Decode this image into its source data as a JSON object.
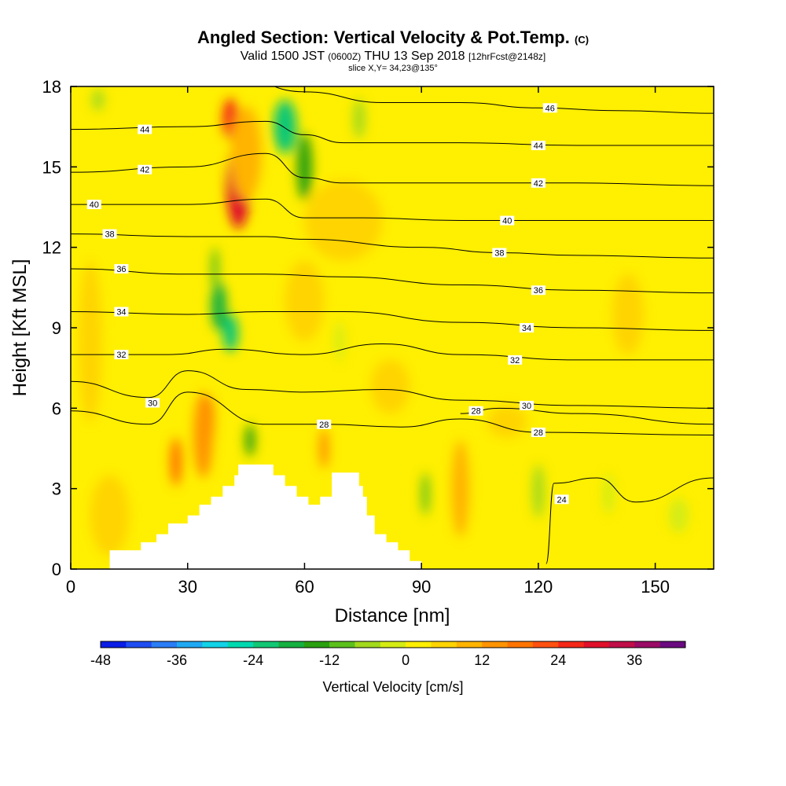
{
  "header": {
    "title": "Angled Section: Vertical Velocity & Pot.Temp.",
    "title_unit": "(C)",
    "valid_prefix": "Valid 1500 JST",
    "valid_utc": "(0600Z)",
    "valid_date": "THU 13 Sep 2018",
    "forecast": "[12hrFcst@2148z]",
    "slice": "slice X,Y= 34,23@135°"
  },
  "chart_data": {
    "type": "heatmap",
    "xlabel": "Distance [nm]",
    "ylabel": "Height [Kft MSL]",
    "xlim": [
      0,
      165
    ],
    "ylim": [
      0,
      18
    ],
    "x_ticks": [
      0,
      30,
      60,
      90,
      120,
      150
    ],
    "y_ticks": [
      0,
      3,
      6,
      9,
      12,
      15,
      18
    ],
    "background_value": 2,
    "colorbar": {
      "title": "Vertical Velocity [cm/s]",
      "min": -48,
      "max": 42,
      "step": 4,
      "tick_values": [
        -48,
        -36,
        -24,
        -12,
        0,
        12,
        24,
        36
      ],
      "colors": [
        "#0a1ee6",
        "#1f4df2",
        "#2a7df5",
        "#1fa9f2",
        "#12d2e6",
        "#00d9b0",
        "#11c774",
        "#14b040",
        "#2aa010",
        "#5cc01c",
        "#a2d91c",
        "#d4ec14",
        "#ffef00",
        "#ffd400",
        "#ffb400",
        "#ff9400",
        "#ff7400",
        "#ff5010",
        "#f52818",
        "#e0102a",
        "#c00e48",
        "#9a0c66",
        "#6a0a80"
      ]
    },
    "terrain": [
      [
        10,
        0
      ],
      [
        10,
        0.7
      ],
      [
        18,
        0.7
      ],
      [
        18,
        1
      ],
      [
        22,
        1
      ],
      [
        22,
        1.3
      ],
      [
        25,
        1.3
      ],
      [
        25,
        1.7
      ],
      [
        30,
        1.7
      ],
      [
        30,
        2
      ],
      [
        33,
        2
      ],
      [
        33,
        2.4
      ],
      [
        36,
        2.4
      ],
      [
        36,
        2.7
      ],
      [
        39,
        2.7
      ],
      [
        39,
        3.1
      ],
      [
        42,
        3.1
      ],
      [
        42,
        3.5
      ],
      [
        43,
        3.5
      ],
      [
        43,
        3.9
      ],
      [
        52,
        3.9
      ],
      [
        52,
        3.5
      ],
      [
        55,
        3.5
      ],
      [
        55,
        3.1
      ],
      [
        58,
        3.1
      ],
      [
        58,
        2.7
      ],
      [
        61,
        2.7
      ],
      [
        61,
        2.4
      ],
      [
        64,
        2.4
      ],
      [
        64,
        2.7
      ],
      [
        67,
        2.7
      ],
      [
        67,
        3.6
      ],
      [
        74,
        3.6
      ],
      [
        74,
        3.1
      ],
      [
        75,
        3.1
      ],
      [
        75,
        2.7
      ],
      [
        76,
        2.7
      ],
      [
        76,
        2
      ],
      [
        78,
        2
      ],
      [
        78,
        1.3
      ],
      [
        81,
        1.3
      ],
      [
        81,
        1
      ],
      [
        84,
        1
      ],
      [
        84,
        0.7
      ],
      [
        87,
        0.7
      ],
      [
        87,
        0.3
      ],
      [
        90,
        0.3
      ],
      [
        90,
        0
      ]
    ],
    "velocity_cells": [
      {
        "x": 43,
        "y": 14.3,
        "w": 6,
        "h": 3.2,
        "value": 28
      },
      {
        "x": 41,
        "y": 16.8,
        "w": 4,
        "h": 1.5,
        "value": 24
      },
      {
        "x": 55,
        "y": 16.5,
        "w": 6,
        "h": 2,
        "value": -24
      },
      {
        "x": 60,
        "y": 15,
        "w": 4,
        "h": 2.5,
        "value": -16
      },
      {
        "x": 45,
        "y": 15.5,
        "w": 8,
        "h": 3.5,
        "value": 8
      },
      {
        "x": 74,
        "y": 16.8,
        "w": 3,
        "h": 1.5,
        "value": -8
      },
      {
        "x": 7,
        "y": 17.5,
        "w": 3,
        "h": 0.8,
        "value": -8
      },
      {
        "x": 38,
        "y": 9.8,
        "w": 4,
        "h": 1.8,
        "value": -20
      },
      {
        "x": 41,
        "y": 8.8,
        "w": 4,
        "h": 1.4,
        "value": -24
      },
      {
        "x": 37,
        "y": 11.2,
        "w": 2,
        "h": 1.6,
        "value": -12
      },
      {
        "x": 35.5,
        "y": 5.4,
        "w": 2.5,
        "h": 2,
        "value": 26
      },
      {
        "x": 34,
        "y": 5,
        "w": 5,
        "h": 3.2,
        "value": 12
      },
      {
        "x": 27,
        "y": 4,
        "w": 3,
        "h": 1.8,
        "value": 18
      },
      {
        "x": 46,
        "y": 4.8,
        "w": 2.5,
        "h": 1.2,
        "value": -16
      },
      {
        "x": 65,
        "y": 4.5,
        "w": 2.5,
        "h": 1.5,
        "value": 12
      },
      {
        "x": 69,
        "y": 8.5,
        "w": 2.5,
        "h": 1.5,
        "value": -4
      },
      {
        "x": 100,
        "y": 3.2,
        "w": 2.5,
        "h": 2.4,
        "value": 24
      },
      {
        "x": 100,
        "y": 3,
        "w": 4.5,
        "h": 3.6,
        "value": 10
      },
      {
        "x": 91,
        "y": 2.8,
        "w": 2,
        "h": 1.6,
        "value": -12
      },
      {
        "x": 120,
        "y": 2.9,
        "w": 3,
        "h": 2,
        "value": -8
      },
      {
        "x": 138,
        "y": 2.8,
        "w": 3,
        "h": 1.5,
        "value": -4
      },
      {
        "x": 156,
        "y": 2,
        "w": 5,
        "h": 1.3,
        "value": -4
      },
      {
        "x": 10,
        "y": 2,
        "w": 10,
        "h": 3,
        "value": 6
      },
      {
        "x": 143,
        "y": 9.5,
        "w": 8,
        "h": 3,
        "value": 5
      },
      {
        "x": 5,
        "y": 8.5,
        "w": 6,
        "h": 6,
        "value": 5
      },
      {
        "x": 70,
        "y": 13,
        "w": 20,
        "h": 3,
        "value": 4
      },
      {
        "x": 60,
        "y": 10,
        "w": 10,
        "h": 3,
        "value": 6
      },
      {
        "x": 82,
        "y": 6.8,
        "w": 10,
        "h": 2,
        "value": 6
      },
      {
        "x": 112,
        "y": 5.5,
        "w": 10,
        "h": 1.2,
        "value": 6
      }
    ],
    "theta_contours": [
      {
        "value": 46,
        "points": [
          [
            0,
            18.2
          ],
          [
            40,
            18.5
          ],
          [
            60,
            17.8
          ],
          [
            80,
            17.4
          ],
          [
            100,
            17.4
          ],
          [
            120,
            17.2
          ],
          [
            140,
            17.1
          ],
          [
            165,
            17
          ]
        ],
        "label_at": [
          123,
          17.2
        ]
      },
      {
        "value": 44,
        "points": [
          [
            0,
            16.4
          ],
          [
            30,
            16.5
          ],
          [
            50,
            16.7
          ],
          [
            60,
            16.2
          ],
          [
            70,
            15.9
          ],
          [
            100,
            15.9
          ],
          [
            130,
            15.8
          ],
          [
            165,
            15.8
          ]
        ],
        "label_at": [
          19,
          16.4
        ]
      },
      {
        "value": 44,
        "points": [
          [
            0,
            16.4
          ],
          [
            30,
            16.5
          ],
          [
            50,
            16.7
          ],
          [
            60,
            16.2
          ],
          [
            70,
            15.9
          ],
          [
            100,
            15.9
          ],
          [
            130,
            15.8
          ],
          [
            165,
            15.8
          ]
        ],
        "label_at": [
          120,
          15.8
        ]
      },
      {
        "value": 42,
        "points": [
          [
            0,
            14.8
          ],
          [
            30,
            15
          ],
          [
            50,
            15.5
          ],
          [
            60,
            14.6
          ],
          [
            70,
            14.4
          ],
          [
            100,
            14.4
          ],
          [
            130,
            14.4
          ],
          [
            165,
            14.3
          ]
        ],
        "label_at": [
          19,
          14.9
        ]
      },
      {
        "value": 42,
        "points": [
          [
            0,
            14.8
          ],
          [
            30,
            15
          ],
          [
            50,
            15.5
          ],
          [
            60,
            14.6
          ],
          [
            70,
            14.4
          ],
          [
            100,
            14.4
          ],
          [
            130,
            14.4
          ],
          [
            165,
            14.3
          ]
        ],
        "label_at": [
          120,
          14.4
        ]
      },
      {
        "value": 40,
        "points": [
          [
            0,
            13.6
          ],
          [
            30,
            13.6
          ],
          [
            50,
            13.8
          ],
          [
            60,
            13.1
          ],
          [
            75,
            13.1
          ],
          [
            100,
            13
          ],
          [
            130,
            13
          ],
          [
            165,
            13
          ]
        ],
        "label_at": [
          6,
          13.6
        ]
      },
      {
        "value": 40,
        "points": [
          [
            0,
            13.6
          ],
          [
            30,
            13.6
          ],
          [
            50,
            13.8
          ],
          [
            60,
            13.1
          ],
          [
            75,
            13.1
          ],
          [
            100,
            13
          ],
          [
            130,
            13
          ],
          [
            165,
            13
          ]
        ],
        "label_at": [
          112,
          13
        ]
      },
      {
        "value": 38,
        "points": [
          [
            0,
            12.5
          ],
          [
            30,
            12.4
          ],
          [
            50,
            12.4
          ],
          [
            60,
            12.3
          ],
          [
            90,
            12
          ],
          [
            110,
            11.8
          ],
          [
            130,
            11.7
          ],
          [
            165,
            11.6
          ]
        ],
        "label_at": [
          10,
          12.5
        ]
      },
      {
        "value": 38,
        "points": [
          [
            0,
            12.5
          ],
          [
            30,
            12.4
          ],
          [
            50,
            12.4
          ],
          [
            60,
            12.3
          ],
          [
            90,
            12
          ],
          [
            110,
            11.8
          ],
          [
            130,
            11.7
          ],
          [
            165,
            11.6
          ]
        ],
        "label_at": [
          110,
          11.8
        ]
      },
      {
        "value": 36,
        "points": [
          [
            0,
            11.2
          ],
          [
            30,
            11
          ],
          [
            50,
            11
          ],
          [
            70,
            10.9
          ],
          [
            100,
            10.6
          ],
          [
            130,
            10.4
          ],
          [
            165,
            10.3
          ]
        ],
        "label_at": [
          13,
          11.2
        ]
      },
      {
        "value": 36,
        "points": [
          [
            0,
            11.2
          ],
          [
            30,
            11
          ],
          [
            50,
            11
          ],
          [
            70,
            10.9
          ],
          [
            100,
            10.6
          ],
          [
            130,
            10.4
          ],
          [
            165,
            10.3
          ]
        ],
        "label_at": [
          120,
          10.4
        ]
      },
      {
        "value": 34,
        "points": [
          [
            0,
            9.6
          ],
          [
            30,
            9.5
          ],
          [
            50,
            9.6
          ],
          [
            70,
            9.6
          ],
          [
            100,
            9.2
          ],
          [
            130,
            9
          ],
          [
            165,
            8.9
          ]
        ],
        "label_at": [
          13,
          9.6
        ]
      },
      {
        "value": 34,
        "points": [
          [
            0,
            9.6
          ],
          [
            30,
            9.5
          ],
          [
            50,
            9.6
          ],
          [
            70,
            9.6
          ],
          [
            100,
            9.2
          ],
          [
            130,
            9
          ],
          [
            165,
            8.9
          ]
        ],
        "label_at": [
          117,
          9
        ]
      },
      {
        "value": 32,
        "points": [
          [
            0,
            8
          ],
          [
            25,
            8
          ],
          [
            40,
            8.2
          ],
          [
            60,
            8
          ],
          [
            80,
            8.4
          ],
          [
            100,
            8
          ],
          [
            130,
            7.8
          ],
          [
            165,
            7.8
          ]
        ],
        "label_at": [
          13,
          8
        ]
      },
      {
        "value": 32,
        "points": [
          [
            0,
            8
          ],
          [
            25,
            8
          ],
          [
            40,
            8.2
          ],
          [
            60,
            8
          ],
          [
            80,
            8.4
          ],
          [
            100,
            8
          ],
          [
            130,
            7.8
          ],
          [
            165,
            7.8
          ]
        ],
        "label_at": [
          114,
          7.8
        ]
      },
      {
        "value": 30,
        "points": [
          [
            0,
            7
          ],
          [
            20,
            6.4
          ],
          [
            30,
            7.4
          ],
          [
            45,
            6.7
          ],
          [
            60,
            6.6
          ],
          [
            80,
            6.7
          ],
          [
            100,
            6.3
          ],
          [
            130,
            6.1
          ],
          [
            165,
            6
          ]
        ],
        "label_at": [
          21,
          6.2
        ]
      },
      {
        "value": 30,
        "points": [
          [
            0,
            7
          ],
          [
            20,
            6.4
          ],
          [
            30,
            7.4
          ],
          [
            45,
            6.7
          ],
          [
            60,
            6.6
          ],
          [
            80,
            6.7
          ],
          [
            100,
            6.3
          ],
          [
            130,
            6.1
          ],
          [
            165,
            6
          ]
        ],
        "label_at": [
          117,
          6.1
        ]
      },
      {
        "value": 28,
        "points": [
          [
            0,
            5.9
          ],
          [
            20,
            5.4
          ],
          [
            30,
            6.6
          ],
          [
            50,
            5.4
          ],
          [
            65,
            5.4
          ],
          [
            85,
            5.3
          ],
          [
            100,
            5.6
          ],
          [
            120,
            5.1
          ],
          [
            165,
            5
          ]
        ],
        "label_at": [
          65,
          5.4
        ]
      },
      {
        "value": 28,
        "points": [
          [
            0,
            5.9
          ],
          [
            20,
            5.4
          ],
          [
            30,
            6.6
          ],
          [
            50,
            5.4
          ],
          [
            65,
            5.4
          ],
          [
            85,
            5.3
          ],
          [
            100,
            5.6
          ],
          [
            120,
            5.1
          ],
          [
            165,
            5
          ]
        ],
        "label_at": [
          120,
          5.1
        ]
      },
      {
        "value": 28,
        "points": [
          [
            100,
            5.8
          ],
          [
            110,
            6
          ],
          [
            130,
            5.8
          ],
          [
            165,
            5.4
          ]
        ],
        "label_at": [
          104,
          5.9
        ]
      },
      {
        "value": 24,
        "points": [
          [
            122,
            0.2
          ],
          [
            124,
            3.2
          ],
          [
            135,
            3.4
          ],
          [
            145,
            2.5
          ],
          [
            165,
            3.4
          ]
        ],
        "label_at": [
          126,
          2.6
        ]
      }
    ]
  }
}
